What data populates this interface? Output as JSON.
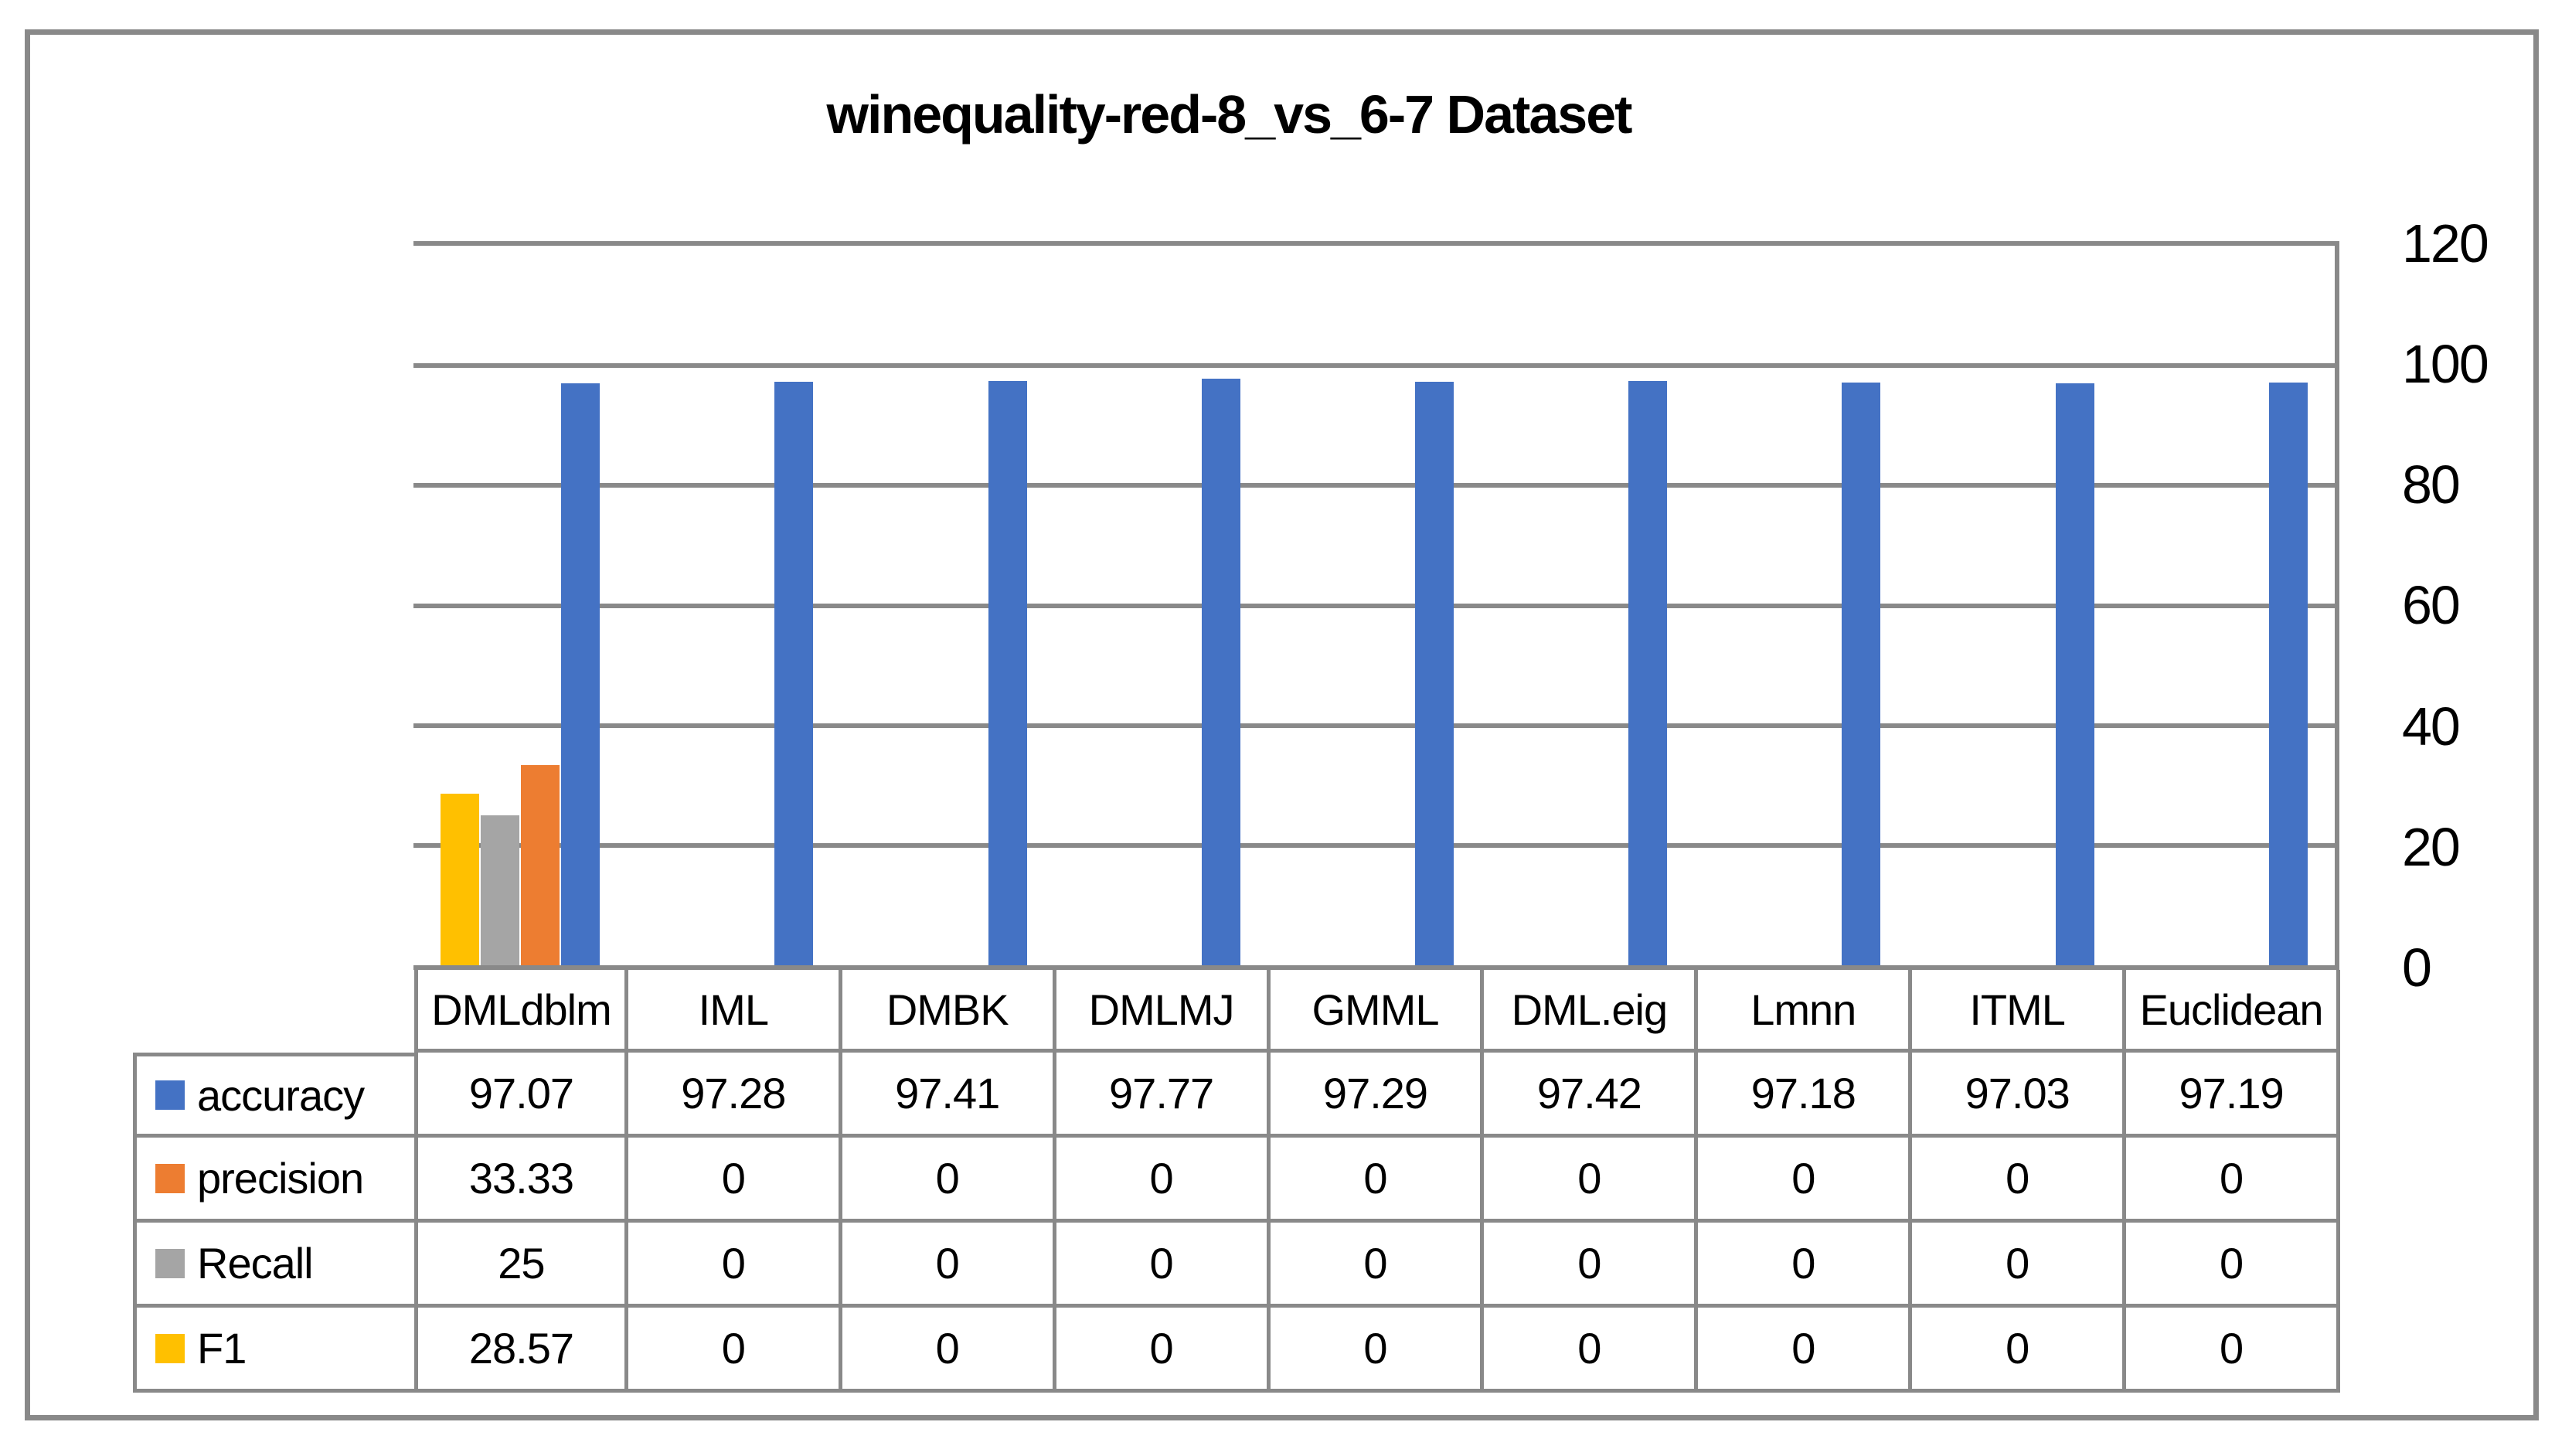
{
  "title": "winequality-red-8_vs_6-7 Dataset",
  "colors": {
    "border_gray": "#898989",
    "background": "#ffffff",
    "text": "#000000",
    "accuracy_blue": "#4472C4",
    "precision_orange": "#ED7D31",
    "recall_gray": "#A5A5A5",
    "f1_yellow": "#FFC000"
  },
  "chart_data": {
    "type": "bar",
    "title": "winequality-red-8_vs_6-7 Dataset",
    "categories": [
      "DMLdblm",
      "IML",
      "DMBK",
      "DMLMJ",
      "GMML",
      "DML.eig",
      "Lmnn",
      "ITML",
      "Euclidean"
    ],
    "series": [
      {
        "name": "accuracy",
        "color": "#4472C4",
        "values": [
          97.07,
          97.28,
          97.41,
          97.77,
          97.29,
          97.42,
          97.18,
          97.03,
          97.19
        ]
      },
      {
        "name": "precision",
        "color": "#ED7D31",
        "values": [
          33.33,
          0,
          0,
          0,
          0,
          0,
          0,
          0,
          0
        ]
      },
      {
        "name": "Recall",
        "color": "#A5A5A5",
        "values": [
          25,
          0,
          0,
          0,
          0,
          0,
          0,
          0,
          0
        ]
      },
      {
        "name": "F1",
        "color": "#FFC000",
        "values": [
          28.57,
          0,
          0,
          0,
          0,
          0,
          0,
          0,
          0
        ]
      }
    ],
    "xlabel": "",
    "ylabel": "",
    "ylim": [
      0,
      120
    ],
    "yticks": [
      120,
      100,
      80,
      60,
      40,
      20,
      0
    ],
    "grid": true,
    "axis_labels_side": "right",
    "legend_position": "table-left",
    "bar_visual_order_in_group": [
      "F1",
      "Recall",
      "precision",
      "accuracy"
    ],
    "data_table_shown": true
  }
}
